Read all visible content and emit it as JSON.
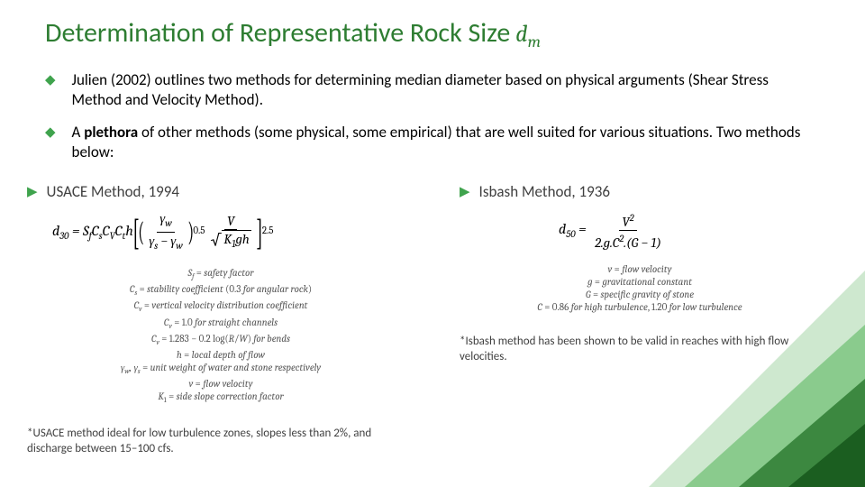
{
  "colors": {
    "title": "#2E7D32",
    "accent": "#3fa34d",
    "body_text": "#000000",
    "muted_text": "#404040",
    "def_text": "#555555",
    "background": "#ffffff",
    "deco_dark": "#1b5e20",
    "deco_mid": "#43a047",
    "deco_light": "#a5d6a7"
  },
  "title": {
    "text": "Determination of Representative Rock Size",
    "symbol_html": "d<sub>m</sub>",
    "fontsize": 30
  },
  "intro_bullets": [
    "Julien (2002) outlines two methods for determining median diameter based on physical arguments (Shear Stress Method and Velocity Method).",
    "A <b>plethora</b> of other methods (some physical, some empirical) that are well suited for various situations.  Two methods below:"
  ],
  "methods": {
    "left": {
      "title": "USACE Method, 1994",
      "formula_d_label": "d<sub>30</sub> =",
      "coeffs": "S<sub>f</sub>C<sub>s</sub>C<sub>V</sub>C<sub>t</sub>h",
      "inner_frac_num": "γ<sub>w</sub>",
      "inner_frac_den": "γ<sub>s</sub> − γ<sub>w</sub>",
      "inner_exp": "0.5",
      "v_frac_num": "V",
      "v_frac_den_inside": "K<sub>1</sub>gh",
      "outer_exp": "2.5",
      "definitions": [
        "<span class='it'>S<sub>f</sub></span> = <span class='it'>safety factor</span>",
        "<span class='it'>C<sub>s</sub></span> = <span class='it'>stability coefficient</span> (0.3 <span class='it'>for angular rock</span>)",
        "<span class='it'>C<sub>v</sub></span> = <span class='it'>vertical velocity distribution coefficient</span>",
        "<span class='it'>C<sub>v</sub></span> = 1.0 <span class='it'>for straight channels</span>",
        "<span class='it'>C<sub>v</sub></span> = 1.283 − 0.2 log(<span class='it'>R</span>/<span class='it'>W</span>) <span class='it'>for bends</span>",
        "<span class='it'>h</span> = <span class='it'>local depth of flow</span>",
        "<span class='it'>γ<sub>w</sub>, γ<sub>s</sub></span> = <span class='it'>unit weight of water and stone respectively</span>",
        "<span class='it'>v</span> = <span class='it'>flow velocity</span>",
        "<span class='it'>K</span><sub>1</sub> = <span class='it'>side slope correction factor</span>"
      ],
      "footnote": "*USACE method ideal for low turbulence zones, slopes less than 2%, and discharge between 15–100 cfs."
    },
    "right": {
      "title": "Isbash Method, 1936",
      "formula_d_label": "d<sub>50</sub> =",
      "frac_num": "V<sup>2</sup>",
      "frac_den": "2.g.C<sup>2</sup>.(G − 1)",
      "definitions": [
        "<span class='it'>v</span> = <span class='it'>flow velocity</span>",
        "<span class='it'>g</span> = <span class='it'>gravitational constant</span>",
        "<span class='it'>G</span> = <span class='it'>specific gravity of stone</span>",
        "<span class='it'>C</span> = 0.86 <span class='it'>for high turbulence</span>, 1.20 <span class='it'>for low turbulence</span>"
      ],
      "footnote": "*Isbash method has been shown to be valid in reaches with high flow velocities."
    }
  }
}
